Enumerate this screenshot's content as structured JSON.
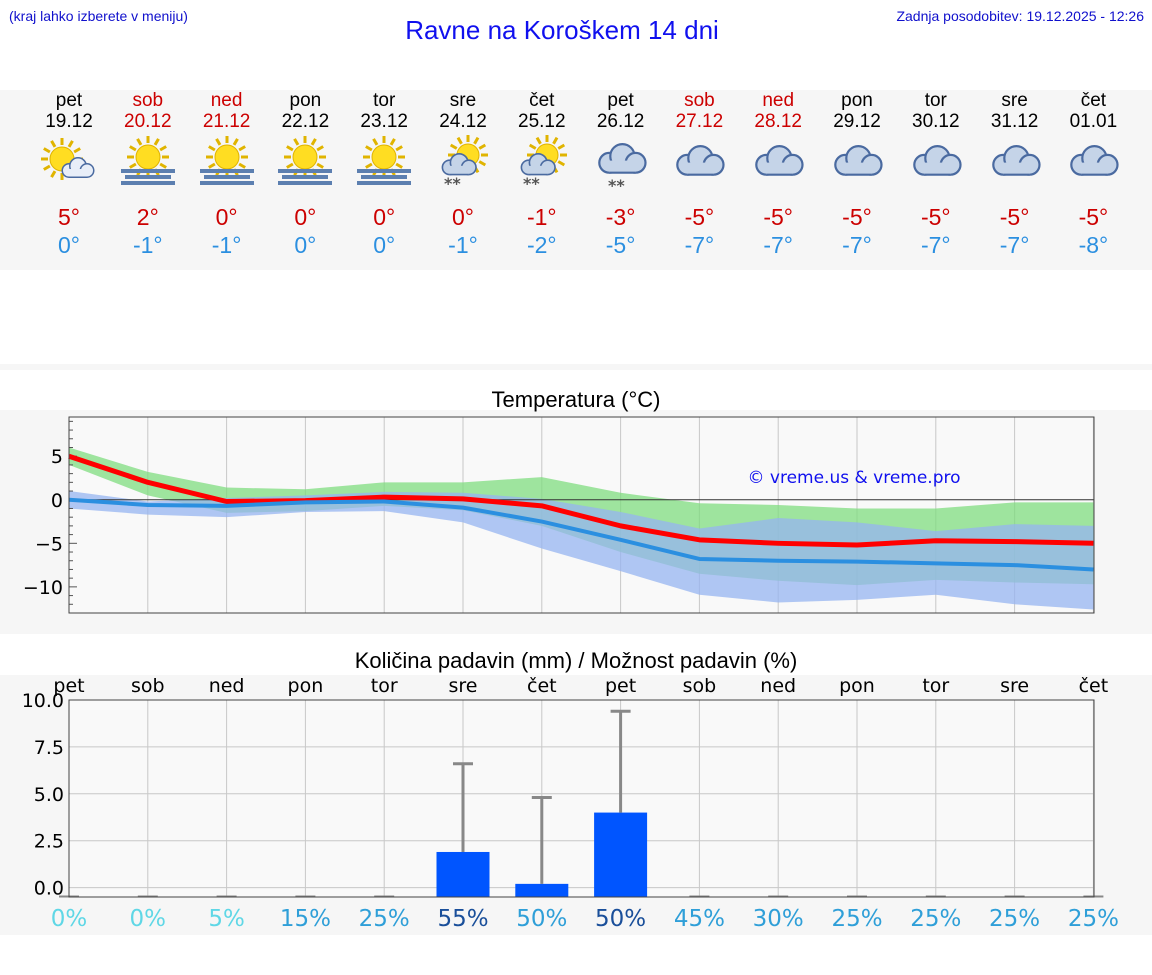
{
  "header": {
    "hint": "(kraj lahko izberete v meniju)",
    "title": "Ravne na Koroškem 14 dni",
    "updated": "Zadnja posodobitev: 19.12.2025 - 12:26"
  },
  "colors": {
    "weekend": "#cc0000",
    "weekday": "#000000",
    "tmax": "#cc0000",
    "tmin": "#2b8fe0",
    "bar": "#0055ff",
    "title": "#1010ee"
  },
  "days": [
    {
      "name": "pet",
      "date": "19.12",
      "weekend": false,
      "icon": "sun-cloud-icon",
      "tmax": "5°",
      "tmin": "0°"
    },
    {
      "name": "sob",
      "date": "20.12",
      "weekend": true,
      "icon": "sun-fog-icon",
      "tmax": "2°",
      "tmin": "-1°"
    },
    {
      "name": "ned",
      "date": "21.12",
      "weekend": true,
      "icon": "sun-fog-icon",
      "tmax": "0°",
      "tmin": "-1°"
    },
    {
      "name": "pon",
      "date": "22.12",
      "weekend": false,
      "icon": "sun-fog-icon",
      "tmax": "0°",
      "tmin": "0°"
    },
    {
      "name": "tor",
      "date": "23.12",
      "weekend": false,
      "icon": "sun-fog-icon",
      "tmax": "0°",
      "tmin": "0°"
    },
    {
      "name": "sre",
      "date": "24.12",
      "weekend": false,
      "icon": "sun-cloud-snow-icon",
      "tmax": "0°",
      "tmin": "-1°"
    },
    {
      "name": "čet",
      "date": "25.12",
      "weekend": false,
      "icon": "sun-cloud-snow-icon",
      "tmax": "-1°",
      "tmin": "-2°"
    },
    {
      "name": "pet",
      "date": "26.12",
      "weekend": false,
      "icon": "cloud-snow-icon",
      "tmax": "-3°",
      "tmin": "-5°"
    },
    {
      "name": "sob",
      "date": "27.12",
      "weekend": true,
      "icon": "cloud-icon",
      "tmax": "-5°",
      "tmin": "-7°"
    },
    {
      "name": "ned",
      "date": "28.12",
      "weekend": true,
      "icon": "cloud-icon",
      "tmax": "-5°",
      "tmin": "-7°"
    },
    {
      "name": "pon",
      "date": "29.12",
      "weekend": false,
      "icon": "cloud-icon",
      "tmax": "-5°",
      "tmin": "-7°"
    },
    {
      "name": "tor",
      "date": "30.12",
      "weekend": false,
      "icon": "cloud-icon",
      "tmax": "-5°",
      "tmin": "-7°"
    },
    {
      "name": "sre",
      "date": "31.12",
      "weekend": false,
      "icon": "cloud-icon",
      "tmax": "-5°",
      "tmin": "-7°"
    },
    {
      "name": "čet",
      "date": "01.01",
      "weekend": false,
      "icon": "cloud-icon",
      "tmax": "-5°",
      "tmin": "-8°"
    }
  ],
  "chart_data": [
    {
      "type": "line",
      "title": "Temperatura (°C)",
      "xlabel": "",
      "ylabel": "",
      "x": [
        0,
        1,
        2,
        3,
        4,
        5,
        6,
        7,
        8,
        9,
        10,
        11,
        12,
        13
      ],
      "ylim": [
        -13,
        9.5
      ],
      "yticks": [
        5,
        0,
        -5,
        -10
      ],
      "ytick_labels": [
        "5",
        "0",
        "−5",
        "−10"
      ],
      "series": [
        {
          "name": "max",
          "color": "#ff0000",
          "values": [
            5,
            2,
            -0.2,
            -0.1,
            0.3,
            0.1,
            -0.7,
            -3,
            -4.6,
            -5,
            -5.2,
            -4.7,
            -4.8,
            -5
          ]
        },
        {
          "name": "min",
          "color": "#2b8fe0",
          "values": [
            0,
            -0.6,
            -0.7,
            -0.3,
            -0.2,
            -0.9,
            -2.5,
            -4.6,
            -6.8,
            -7,
            -7.1,
            -7.3,
            -7.5,
            -8
          ]
        }
      ],
      "bands": [
        {
          "name": "max-range",
          "color": "#7fdc7f",
          "upper": [
            6,
            3.2,
            1.4,
            1.2,
            2,
            2,
            2.6,
            0.8,
            -0.4,
            -0.6,
            -1,
            -1,
            -0.3,
            -0.3
          ],
          "lower": [
            4,
            0.5,
            -1.5,
            -1.3,
            -0.7,
            -1.2,
            -3,
            -6,
            -8.5,
            -9.3,
            -9.8,
            -9.2,
            -9.5,
            -9.7
          ]
        },
        {
          "name": "min-range",
          "color": "#96b4f0",
          "upper": [
            1,
            -0.2,
            0.2,
            0.5,
            0.9,
            0.8,
            0.1,
            -1.4,
            -3.3,
            -2.1,
            -2.6,
            -3.6,
            -2.8,
            -3
          ]
        },
        {
          "name": "min-range-lower",
          "color": "#96b4f0",
          "lower": [
            -1,
            -1.7,
            -2,
            -1.4,
            -1.3,
            -2.6,
            -5.6,
            -8.2,
            -10.9,
            -11.8,
            -11.5,
            -10.9,
            -12,
            -12.6
          ]
        }
      ],
      "watermark": "© vreme.us & vreme.pro"
    },
    {
      "type": "bar",
      "title": "Količina padavin (mm) / Možnost padavin (%)",
      "categories": [
        "pet",
        "sob",
        "ned",
        "pon",
        "tor",
        "sre",
        "čet",
        "pet",
        "sob",
        "ned",
        "pon",
        "tor",
        "sre",
        "čet"
      ],
      "values": [
        0,
        0,
        0,
        0,
        0,
        1.9,
        0.2,
        4.0,
        0,
        0,
        0,
        0,
        0,
        0
      ],
      "error_high": [
        0,
        0,
        0,
        0,
        0,
        6.6,
        4.8,
        9.4,
        0,
        0,
        0,
        0,
        0,
        0
      ],
      "ylim": [
        -0.5,
        10
      ],
      "yticks": [
        10.0,
        7.5,
        5.0,
        2.5,
        0.0
      ],
      "ytick_labels": [
        "10.0",
        "7.5",
        "5.0",
        "2.5",
        "0.0"
      ],
      "probability": [
        "0%",
        "0%",
        "5%",
        "15%",
        "25%",
        "55%",
        "50%",
        "50%",
        "45%",
        "30%",
        "25%",
        "25%",
        "25%",
        "25%"
      ],
      "probability_colors": [
        "#5fd7e6",
        "#5fd7e6",
        "#5fd7e6",
        "#2f9fd8",
        "#2f9fd8",
        "#1a4f9a",
        "#2f9fd8",
        "#1a4f9a",
        "#2f9fd8",
        "#2f9fd8",
        "#2f9fd8",
        "#2f9fd8",
        "#2f9fd8",
        "#2f9fd8"
      ]
    }
  ]
}
